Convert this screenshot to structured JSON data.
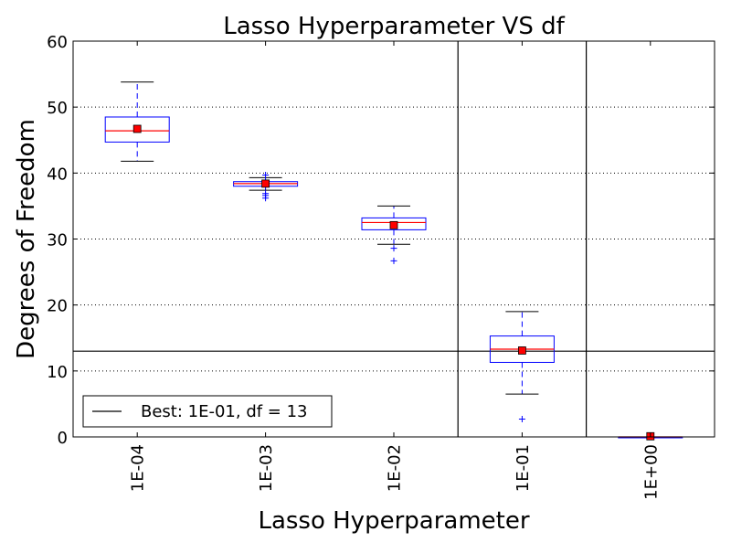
{
  "chart_data": {
    "type": "box",
    "title": "Lasso Hyperparameter VS df",
    "xlabel": "Lasso Hyperparameter",
    "ylabel": "Degrees of Freedom",
    "categories": [
      "1E-04",
      "1E-03",
      "1E-02",
      "1E-01",
      "1E+00"
    ],
    "ylim": [
      0,
      60
    ],
    "yticks": [
      0,
      10,
      20,
      30,
      40,
      50,
      60
    ],
    "grid": "horizontal-dotted",
    "boxes": [
      {
        "category": "1E-04",
        "whisker_low": 41.8,
        "q1": 44.7,
        "median": 46.4,
        "q3": 48.5,
        "whisker_high": 53.8,
        "mean": 46.7,
        "outliers": []
      },
      {
        "category": "1E-03",
        "whisker_low": 37.4,
        "q1": 38.0,
        "median": 38.4,
        "q3": 38.7,
        "whisker_high": 39.3,
        "mean": 38.4,
        "outliers": [
          36.2,
          36.6,
          36.9,
          39.7
        ]
      },
      {
        "category": "1E-02",
        "whisker_low": 29.2,
        "q1": 31.4,
        "median": 32.5,
        "q3": 33.2,
        "whisker_high": 35.0,
        "mean": 32.1,
        "outliers": [
          28.6,
          26.7
        ]
      },
      {
        "category": "1E-01",
        "whisker_low": 6.5,
        "q1": 11.3,
        "median": 13.3,
        "q3": 15.3,
        "whisker_high": 19.0,
        "mean": 13.1,
        "outliers": [
          2.7
        ]
      },
      {
        "category": "1E+00",
        "whisker_low": 0.0,
        "q1": 0.0,
        "median": 0.0,
        "q3": 0.0,
        "whisker_high": 0.0,
        "mean": 0.1,
        "outliers": []
      }
    ],
    "best": {
      "label": "Best: 1E-01, df = 13",
      "category": "1E-01",
      "df": 13
    },
    "legend_position": "bottom-left",
    "colors": {
      "box": "#0000ff",
      "median": "#ff0000",
      "mean": "#ff0000",
      "outlier": "#0000ff",
      "reference": "#000000",
      "grid": "#000000"
    }
  }
}
